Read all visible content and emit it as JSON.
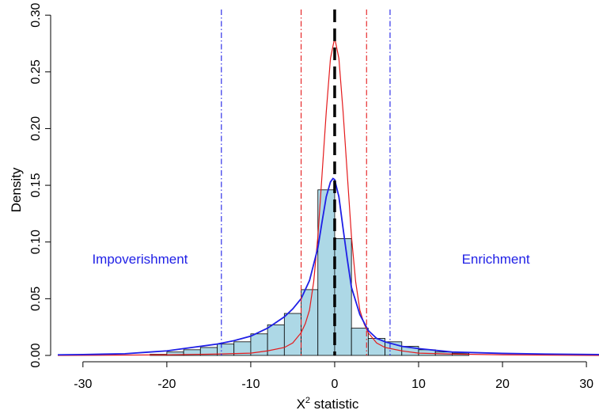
{
  "chart_data": {
    "type": "bar",
    "xlabel_main": "X",
    "xlabel_sup": "2",
    "xlabel_rest": " statistic",
    "ylabel": "Density",
    "xlim": [
      -33,
      31.5
    ],
    "ylim": [
      0,
      0.305
    ],
    "xticks": [
      -30,
      -20,
      -10,
      0,
      10,
      20,
      30
    ],
    "xtick_labels": [
      "-30",
      "-20",
      "-10",
      "0",
      "10",
      "20",
      "30"
    ],
    "yticks": [
      0.0,
      0.05,
      0.1,
      0.15,
      0.2,
      0.25,
      0.3
    ],
    "ytick_labels": [
      "0.00",
      "0.05",
      "0.10",
      "0.15",
      "0.20",
      "0.25",
      "0.30"
    ],
    "annotations": [
      {
        "text": "Impoverishment",
        "x": -23.2,
        "y": 0.081,
        "color": "#1f1fe6"
      },
      {
        "text": "Enrichment",
        "x": 19.2,
        "y": 0.081,
        "color": "#1f1fe6"
      }
    ],
    "histogram": {
      "name": "",
      "fill": "#add8e6",
      "stroke": "#000000",
      "bins": [
        {
          "x0": -22,
          "x1": -20,
          "y": 0.001
        },
        {
          "x0": -20,
          "x1": -18,
          "y": 0.003
        },
        {
          "x0": -18,
          "x1": -16,
          "y": 0.005
        },
        {
          "x0": -16,
          "x1": -14,
          "y": 0.007
        },
        {
          "x0": -14,
          "x1": -12,
          "y": 0.01
        },
        {
          "x0": -12,
          "x1": -10,
          "y": 0.012
        },
        {
          "x0": -10,
          "x1": -8,
          "y": 0.019
        },
        {
          "x0": -8,
          "x1": -6,
          "y": 0.027
        },
        {
          "x0": -6,
          "x1": -4,
          "y": 0.037
        },
        {
          "x0": -4,
          "x1": -2,
          "y": 0.058
        },
        {
          "x0": -2,
          "x1": 0,
          "y": 0.146
        },
        {
          "x0": 0,
          "x1": 2,
          "y": 0.103
        },
        {
          "x0": 2,
          "x1": 4,
          "y": 0.024
        },
        {
          "x0": 4,
          "x1": 6,
          "y": 0.015
        },
        {
          "x0": 6,
          "x1": 8,
          "y": 0.012
        },
        {
          "x0": 8,
          "x1": 10,
          "y": 0.008
        },
        {
          "x0": 10,
          "x1": 12,
          "y": 0.005
        },
        {
          "x0": 12,
          "x1": 14,
          "y": 0.003
        },
        {
          "x0": 14,
          "x1": 16,
          "y": 0.002
        }
      ]
    },
    "curves": [
      {
        "name": "",
        "color": "#e41a1c",
        "points": [
          [
            -33,
            0.0
          ],
          [
            -20,
            0.0005
          ],
          [
            -14,
            0.0012
          ],
          [
            -10,
            0.002
          ],
          [
            -8,
            0.004
          ],
          [
            -6,
            0.007
          ],
          [
            -5,
            0.011
          ],
          [
            -4,
            0.02
          ],
          [
            -3.5,
            0.028
          ],
          [
            -3,
            0.04
          ],
          [
            -2.5,
            0.065
          ],
          [
            -2,
            0.105
          ],
          [
            -1.5,
            0.16
          ],
          [
            -1,
            0.215
          ],
          [
            -0.5,
            0.262
          ],
          [
            0,
            0.28
          ],
          [
            0.5,
            0.262
          ],
          [
            1,
            0.215
          ],
          [
            1.5,
            0.16
          ],
          [
            2,
            0.105
          ],
          [
            2.5,
            0.065
          ],
          [
            3,
            0.04
          ],
          [
            3.5,
            0.028
          ],
          [
            4,
            0.02
          ],
          [
            5,
            0.011
          ],
          [
            6,
            0.007
          ],
          [
            8,
            0.004
          ],
          [
            10,
            0.002
          ],
          [
            14,
            0.0012
          ],
          [
            20,
            0.0005
          ],
          [
            31.5,
            0.0
          ]
        ]
      },
      {
        "name": "",
        "color": "#1f1fe6",
        "points": [
          [
            -33,
            0.0005
          ],
          [
            -30,
            0.0008
          ],
          [
            -25,
            0.0015
          ],
          [
            -22,
            0.003
          ],
          [
            -20,
            0.004
          ],
          [
            -18,
            0.006
          ],
          [
            -16,
            0.008
          ],
          [
            -14,
            0.01
          ],
          [
            -12,
            0.013
          ],
          [
            -10,
            0.017
          ],
          [
            -8,
            0.024
          ],
          [
            -6,
            0.034
          ],
          [
            -5,
            0.041
          ],
          [
            -4,
            0.05
          ],
          [
            -3,
            0.066
          ],
          [
            -2,
            0.095
          ],
          [
            -1.5,
            0.118
          ],
          [
            -1,
            0.14
          ],
          [
            -0.5,
            0.153
          ],
          [
            -0.2,
            0.156
          ],
          [
            0,
            0.155
          ],
          [
            0.5,
            0.14
          ],
          [
            1,
            0.112
          ],
          [
            1.5,
            0.085
          ],
          [
            2,
            0.06
          ],
          [
            3,
            0.036
          ],
          [
            4,
            0.022
          ],
          [
            5,
            0.015
          ],
          [
            6,
            0.012
          ],
          [
            8,
            0.008
          ],
          [
            10,
            0.006
          ],
          [
            14,
            0.003
          ],
          [
            20,
            0.0018
          ],
          [
            25,
            0.0012
          ],
          [
            31.5,
            0.0008
          ]
        ]
      }
    ],
    "vlines": [
      {
        "x": 0,
        "color": "#000000",
        "style": "dashed",
        "weight": "thick"
      },
      {
        "x": -4,
        "color": "#e41a1c",
        "style": "dotdash",
        "weight": "thin"
      },
      {
        "x": 3.8,
        "color": "#e41a1c",
        "style": "dotdash",
        "weight": "thin"
      },
      {
        "x": -13.5,
        "color": "#1f1fe6",
        "style": "dotdash",
        "weight": "thin"
      },
      {
        "x": 6.6,
        "color": "#1f1fe6",
        "style": "dotdash",
        "weight": "thin"
      }
    ],
    "grid": false,
    "legend": "none"
  }
}
